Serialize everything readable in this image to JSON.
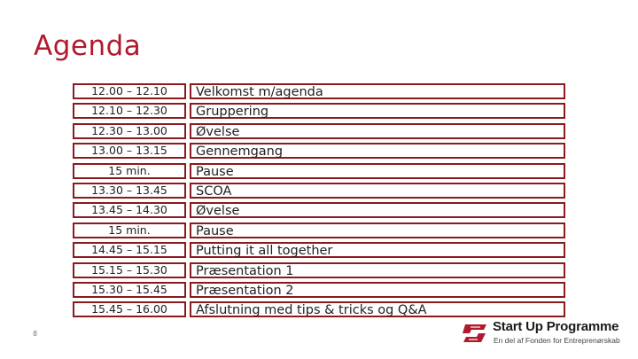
{
  "title": "Agenda",
  "page_number": "8",
  "agenda": [
    {
      "time": "12.00 – 12.10",
      "activity": "Velkomst m/agenda"
    },
    {
      "time": "12.10 – 12.30",
      "activity": "Gruppering"
    },
    {
      "time": "12.30 – 13.00",
      "activity": "Øvelse"
    },
    {
      "time": "13.00 – 13.15",
      "activity": "Gennemgang"
    },
    {
      "time": "15 min.",
      "activity": "Pause"
    },
    {
      "time": "13.30 – 13.45",
      "activity": "SCOA"
    },
    {
      "time": "13.45 – 14.30",
      "activity": "Øvelse"
    },
    {
      "time": "15 min.",
      "activity": "Pause"
    },
    {
      "time": "14.45 – 15.15",
      "activity": "Putting it all together"
    },
    {
      "time": "15.15 – 15.30",
      "activity": "Præsentation 1"
    },
    {
      "time": "15.30 – 15.45",
      "activity": "Præsentation 2"
    },
    {
      "time": "15.45 – 16.00",
      "activity": "Afslutning med tips & tricks og Q&A"
    }
  ],
  "logo": {
    "title": "Start Up Programme",
    "subtitle": "En del af Fonden for Entreprenørskab",
    "icon": "start-up-programme-logo-mark",
    "color": "#b01a2c"
  },
  "colors": {
    "title": "#b01a2c",
    "cell_border": "#8b1a1f"
  }
}
